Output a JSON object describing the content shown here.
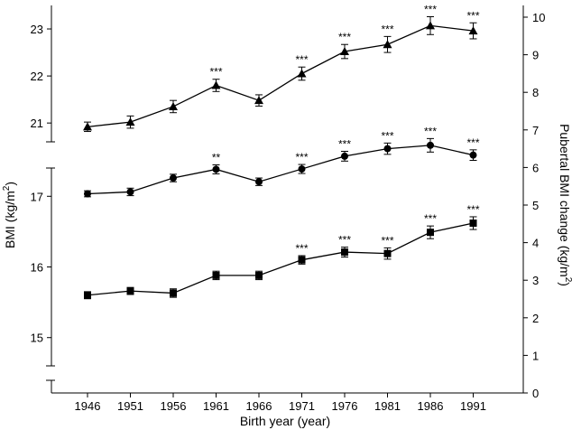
{
  "chart_data": {
    "type": "line",
    "xlabel": "Birth year (year)",
    "ylabel_left": "BMI (kg/m",
    "ylabel_left_sup": "2",
    "ylabel_left_end": ")",
    "ylabel_right": "Pubertal BMI change (kg/m",
    "ylabel_right_sup": "2",
    "ylabel_right_end": ")",
    "categories": [
      "1946",
      "1951",
      "1956",
      "1961",
      "1966",
      "1971",
      "1976",
      "1981",
      "1986",
      "1991"
    ],
    "left_axis": {
      "upper_segment": {
        "ylim": [
          20.6,
          23.5
        ],
        "ticks": [
          "21",
          "22",
          "23"
        ]
      },
      "lower_segment": {
        "ylim": [
          14.6,
          17.4
        ],
        "ticks": [
          "15",
          "16",
          "17"
        ]
      },
      "axis_break": true
    },
    "right_axis": {
      "ylim": [
        0,
        10.5
      ],
      "ticks": [
        "0",
        "1",
        "2",
        "3",
        "4",
        "5",
        "6",
        "7",
        "8",
        "9",
        "10"
      ]
    },
    "series": [
      {
        "marker": "triangle",
        "axis": "left-upper",
        "values": [
          20.92,
          21.02,
          21.35,
          21.8,
          21.48,
          22.05,
          22.52,
          22.67,
          23.07,
          22.96
        ],
        "errors": [
          0.1,
          0.13,
          0.13,
          0.13,
          0.12,
          0.14,
          0.15,
          0.17,
          0.19,
          0.17
        ],
        "significance": [
          "",
          "",
          "",
          "***",
          "",
          "***",
          "***",
          "***",
          "***",
          "***"
        ]
      },
      {
        "marker": "circle",
        "axis": "right",
        "values": [
          5.3,
          5.35,
          5.72,
          5.95,
          5.62,
          5.96,
          6.3,
          6.5,
          6.59,
          6.33
        ],
        "errors": [
          0.08,
          0.1,
          0.1,
          0.12,
          0.1,
          0.12,
          0.13,
          0.15,
          0.18,
          0.14
        ],
        "significance": [
          "",
          "",
          "",
          "**",
          "",
          "***",
          "***",
          "***",
          "***",
          "***"
        ]
      },
      {
        "marker": "square",
        "axis": "left-lower",
        "values": [
          15.6,
          15.66,
          15.63,
          15.88,
          15.88,
          16.1,
          16.21,
          16.19,
          16.49,
          16.62
        ],
        "errors": [
          0.05,
          0.05,
          0.06,
          0.06,
          0.06,
          0.06,
          0.07,
          0.08,
          0.09,
          0.09
        ],
        "significance": [
          "",
          "",
          "",
          "",
          "",
          "***",
          "***",
          "***",
          "***",
          "***"
        ]
      }
    ],
    "grid": false,
    "legend": "none"
  }
}
